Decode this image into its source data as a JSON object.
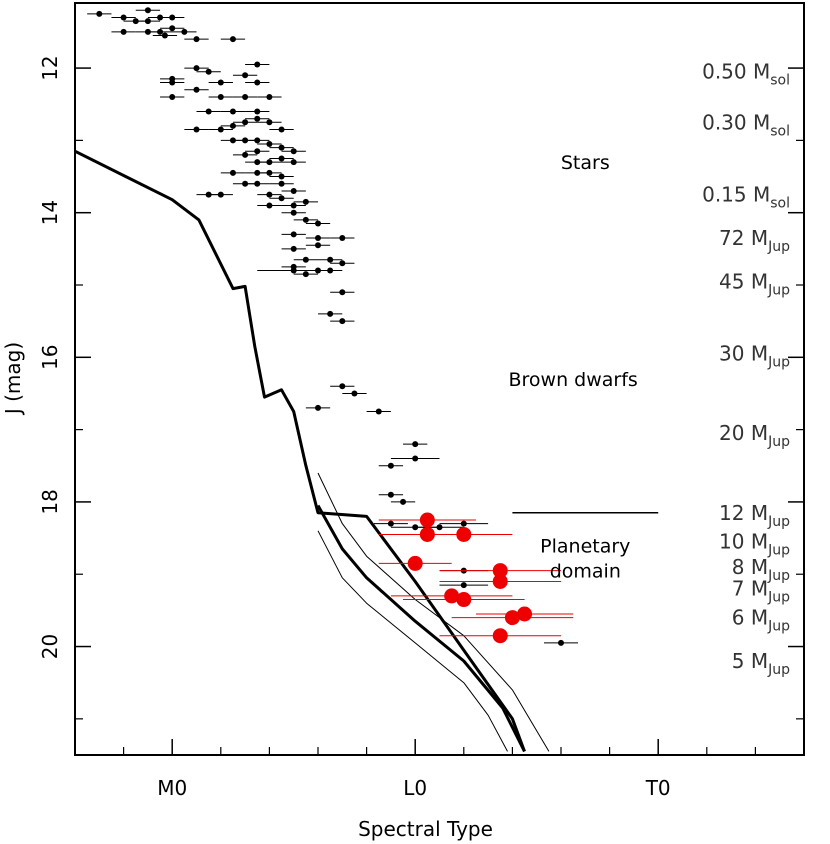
{
  "chart_data": {
    "type": "scatter",
    "xlabel": "Spectral Type",
    "ylabel": "J (mag)",
    "x_scale_note": "spectral subtypes; M0=0, L0=10, T0=20",
    "xlim": [
      -4,
      26
    ],
    "ylim": [
      21.5,
      11.1
    ],
    "x_ticks": [
      {
        "value": 0,
        "label": "M0"
      },
      {
        "value": 10,
        "label": "L0"
      },
      {
        "value": 20,
        "label": "T0"
      }
    ],
    "x_minor_ticks": [
      -2,
      2,
      4,
      6,
      8,
      12,
      14,
      16,
      18,
      22,
      24
    ],
    "y_ticks": [
      12,
      14,
      16,
      18,
      20
    ],
    "y_minor_ticks": [
      13,
      15,
      17,
      19,
      21
    ],
    "region_labels": [
      {
        "text": "Stars",
        "x": 17.0,
        "y": 13.3
      },
      {
        "text": "Brown dwarfs",
        "x": 16.5,
        "y": 16.3
      },
      {
        "text": "Planetary",
        "x": 17.0,
        "y": 18.6
      },
      {
        "text": "domain",
        "x": 17.0,
        "y": 18.95
      }
    ],
    "mass_labels": [
      {
        "num": "0.50",
        "unit": "M",
        "sub": "sol",
        "y": 12.05
      },
      {
        "num": "0.30",
        "unit": "M",
        "sub": "sol",
        "y": 12.75
      },
      {
        "num": "0.15",
        "unit": "M",
        "sub": "sol",
        "y": 13.75
      },
      {
        "num": "72",
        "unit": "M",
        "sub": "Jup",
        "y": 14.35
      },
      {
        "num": "45",
        "unit": "M",
        "sub": "Jup",
        "y": 14.95
      },
      {
        "num": "30",
        "unit": "M",
        "sub": "Jup",
        "y": 15.95
      },
      {
        "num": "20",
        "unit": "M",
        "sub": "Jup",
        "y": 17.05
      },
      {
        "num": "12",
        "unit": "M",
        "sub": "Jup",
        "y": 18.15
      },
      {
        "num": "10",
        "unit": "M",
        "sub": "Jup",
        "y": 18.55
      },
      {
        "num": "8",
        "unit": "M",
        "sub": "Jup",
        "y": 18.9
      },
      {
        "num": "7",
        "unit": "M",
        "sub": "Jup",
        "y": 19.2
      },
      {
        "num": "6",
        "unit": "M",
        "sub": "Jup",
        "y": 19.6
      },
      {
        "num": "5",
        "unit": "M",
        "sub": "Jup",
        "y": 20.2
      }
    ],
    "boundary_line": {
      "x": [
        14.0,
        20.0
      ],
      "y": [
        18.15,
        18.15
      ]
    },
    "curves": [
      {
        "name": "main",
        "width": 3,
        "x": [
          -4,
          0,
          1.1,
          2.5,
          3.0,
          3.4,
          3.8,
          4.5,
          5.0,
          5.5,
          6.0,
          8.0,
          10.0,
          12.0,
          14.0,
          14.5
        ],
        "y": [
          13.15,
          13.82,
          14.1,
          15.05,
          15.02,
          15.85,
          16.55,
          16.45,
          16.75,
          17.5,
          18.15,
          18.2,
          19.1,
          20.05,
          21.0,
          21.45
        ]
      },
      {
        "name": "lower",
        "width": 3,
        "x": [
          6.0,
          7.0,
          8.0,
          10.0,
          12.0,
          13.6,
          14.5
        ],
        "y": [
          18.05,
          18.65,
          19.05,
          19.65,
          20.2,
          20.85,
          21.45
        ]
      },
      {
        "name": "upper",
        "width": 1,
        "x": [
          6.0,
          7.0,
          8.0,
          10.0,
          12.0,
          14.0,
          15.5
        ],
        "y": [
          17.6,
          18.3,
          18.75,
          19.35,
          19.85,
          20.6,
          21.45
        ]
      },
      {
        "name": "lowest",
        "width": 1,
        "x": [
          6.0,
          7.0,
          8.0,
          10.0,
          12.0,
          13.0,
          13.8
        ],
        "y": [
          18.4,
          19.05,
          19.4,
          19.95,
          20.5,
          20.95,
          21.45
        ]
      }
    ],
    "series": [
      {
        "name": "black",
        "color": "#000000",
        "points": [
          [
            -3.0,
            11.25,
            0.5
          ],
          [
            -2.0,
            11.3,
            0.5
          ],
          [
            -1.5,
            11.35,
            0.5
          ],
          [
            -1.0,
            11.2,
            0.5
          ],
          [
            -0.5,
            11.3,
            0.5
          ],
          [
            0.0,
            11.3,
            0.5
          ],
          [
            -2.0,
            11.5,
            0.5
          ],
          [
            -1.0,
            11.5,
            0.5
          ],
          [
            -0.5,
            11.5,
            0.5
          ],
          [
            0.0,
            11.45,
            0.5
          ],
          [
            0.5,
            11.5,
            0.5
          ],
          [
            1.0,
            11.6,
            0.5
          ],
          [
            -1.0,
            11.35,
            0.5
          ],
          [
            -0.3,
            11.55,
            0.5
          ],
          [
            2.5,
            11.6,
            0.5
          ],
          [
            3.5,
            11.95,
            0.5
          ],
          [
            1.0,
            12.0,
            0.5
          ],
          [
            1.0,
            12.3,
            0.5
          ],
          [
            1.5,
            12.05,
            0.5
          ],
          [
            0.0,
            12.15,
            0.5
          ],
          [
            0.0,
            12.2,
            0.5
          ],
          [
            2.0,
            12.2,
            0.5
          ],
          [
            0.0,
            12.4,
            0.5
          ],
          [
            3.5,
            12.2,
            0.5
          ],
          [
            3.0,
            12.1,
            0.5
          ],
          [
            2.0,
            12.4,
            0.5
          ],
          [
            1.5,
            12.6,
            0.5
          ],
          [
            2.5,
            12.6,
            0.5
          ],
          [
            3.5,
            12.6,
            0.5
          ],
          [
            3.0,
            12.4,
            0.5
          ],
          [
            4.0,
            12.4,
            0.5
          ],
          [
            2.5,
            12.8,
            0.5
          ],
          [
            3.0,
            12.75,
            0.5
          ],
          [
            3.5,
            12.7,
            0.5
          ],
          [
            4.0,
            12.75,
            0.5
          ],
          [
            4.5,
            12.85,
            0.5
          ],
          [
            1.0,
            12.85,
            0.5
          ],
          [
            2.0,
            12.85,
            0.5
          ],
          [
            2.5,
            13.0,
            0.5
          ],
          [
            3.0,
            13.0,
            0.5
          ],
          [
            3.5,
            13.0,
            0.5
          ],
          [
            4.0,
            13.05,
            0.5
          ],
          [
            3.5,
            13.15,
            0.5
          ],
          [
            4.5,
            13.1,
            0.5
          ],
          [
            5.0,
            13.15,
            0.5
          ],
          [
            3.0,
            13.2,
            0.5
          ],
          [
            3.5,
            13.3,
            0.5
          ],
          [
            4.0,
            13.3,
            0.5
          ],
          [
            4.5,
            13.25,
            0.5
          ],
          [
            5.0,
            13.3,
            0.5
          ],
          [
            2.5,
            13.45,
            0.5
          ],
          [
            3.5,
            13.45,
            0.5
          ],
          [
            4.0,
            13.45,
            0.5
          ],
          [
            4.5,
            13.5,
            0.5
          ],
          [
            3.0,
            13.6,
            0.5
          ],
          [
            3.5,
            13.6,
            0.5
          ],
          [
            4.5,
            13.6,
            0.5
          ],
          [
            5.0,
            13.7,
            0.5
          ],
          [
            1.5,
            13.75,
            0.5
          ],
          [
            2.0,
            13.75,
            0.5
          ],
          [
            4.0,
            13.75,
            0.5
          ],
          [
            4.5,
            13.8,
            0.5
          ],
          [
            5.0,
            13.9,
            0.5
          ],
          [
            5.5,
            13.85,
            0.5
          ],
          [
            4.0,
            13.9,
            0.5
          ],
          [
            5.0,
            14.0,
            0.5
          ],
          [
            5.5,
            14.1,
            0.5
          ],
          [
            6.0,
            14.15,
            0.5
          ],
          [
            5.0,
            14.3,
            0.5
          ],
          [
            6.0,
            14.35,
            0.5
          ],
          [
            7.0,
            14.35,
            0.5
          ],
          [
            5.0,
            14.5,
            0.5
          ],
          [
            6.0,
            14.45,
            0.5
          ],
          [
            5.5,
            14.65,
            0.5
          ],
          [
            6.5,
            14.65,
            0.5
          ],
          [
            5.0,
            14.75,
            0.5
          ],
          [
            6.0,
            14.8,
            0.5
          ],
          [
            6.5,
            14.8,
            0.5
          ],
          [
            7.0,
            14.7,
            0.5
          ],
          [
            5.5,
            14.85,
            0.5
          ],
          [
            5.0,
            14.8,
            1.5
          ],
          [
            7.0,
            15.1,
            0.5
          ],
          [
            6.5,
            15.4,
            0.5
          ],
          [
            7.0,
            15.5,
            0.5
          ],
          [
            7.0,
            16.4,
            0.5
          ],
          [
            7.5,
            16.5,
            0.5
          ],
          [
            6.0,
            16.7,
            0.5
          ],
          [
            8.5,
            16.75,
            0.5
          ],
          [
            10.0,
            17.2,
            0.5
          ],
          [
            10.0,
            17.4,
            1.0
          ],
          [
            9.0,
            17.5,
            0.5
          ],
          [
            9.0,
            17.9,
            0.5
          ],
          [
            9.5,
            18.0,
            0.5
          ],
          [
            9.0,
            18.3,
            0.7
          ],
          [
            10.0,
            18.35,
            1.0
          ],
          [
            11.0,
            18.35,
            1.0
          ],
          [
            12.0,
            18.3,
            1.0
          ],
          [
            12.0,
            18.95,
            1.0
          ],
          [
            12.0,
            19.15,
            1.0
          ],
          [
            16.0,
            19.95,
            0.7
          ]
        ]
      },
      {
        "name": "red",
        "color": "#ee0000",
        "points": [
          [
            10.5,
            18.25,
            2.0
          ],
          [
            10.5,
            18.45,
            2.0
          ],
          [
            12.0,
            18.45,
            2.0
          ],
          [
            10.0,
            18.85,
            1.5
          ],
          [
            13.5,
            18.95,
            2.5
          ],
          [
            13.5,
            19.1,
            2.5
          ],
          [
            11.5,
            19.3,
            2.5
          ],
          [
            12.0,
            19.35,
            2.5
          ],
          [
            14.5,
            19.55,
            2.0
          ],
          [
            14.0,
            19.6,
            2.5
          ],
          [
            13.5,
            19.85,
            2.5
          ]
        ]
      }
    ]
  }
}
